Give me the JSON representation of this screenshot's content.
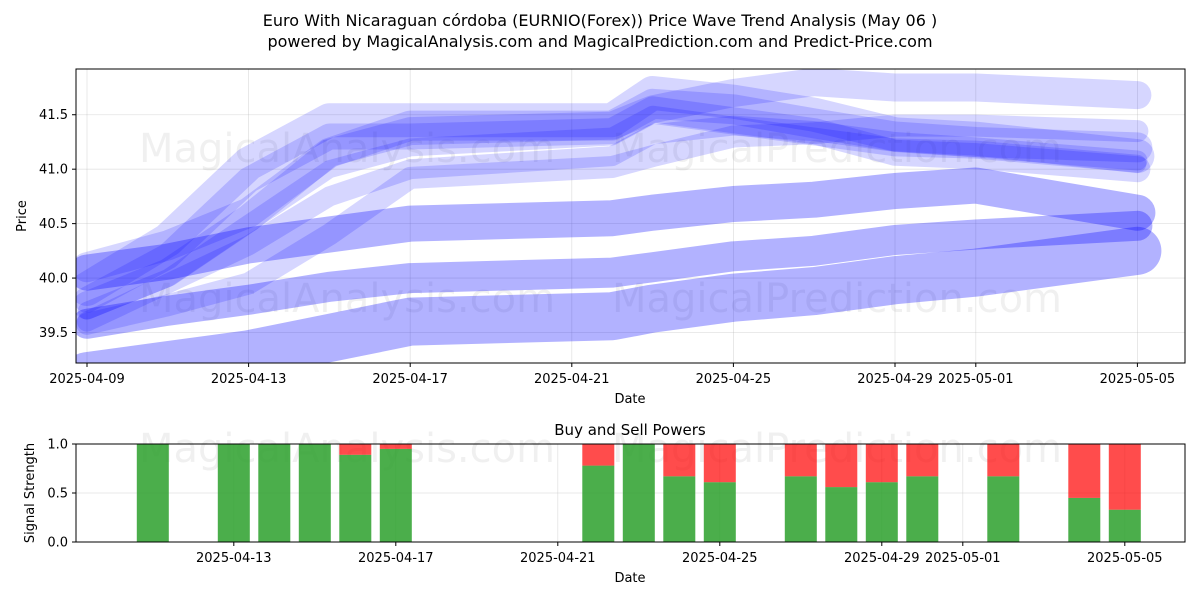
{
  "title_line1": "Euro With Nicaraguan córdoba (EURNIO(Forex)) Price Wave Trend Analysis (May 06 )",
  "title_line2": "powered by MagicalAnalysis.com and MagicalPrediction.com and Predict-Price.com",
  "watermarks": [
    "MagicalAnalysis.com",
    "MagicalPrediction.com"
  ],
  "colors": {
    "wave": "#0000ff",
    "buy": "#2ca02c",
    "sell": "#ff0000",
    "axis": "#000000"
  },
  "chart_data": [
    {
      "type": "line",
      "title": "",
      "xlabel": "Date",
      "ylabel": "Price",
      "x_range": [
        "2025-04-09",
        "2025-05-06"
      ],
      "ylim": [
        39.22,
        41.92
      ],
      "yticks": [
        39.5,
        40.0,
        40.5,
        41.0,
        41.5
      ],
      "xtick_dates": [
        "2025-04-09",
        "2025-04-13",
        "2025-04-17",
        "2025-04-21",
        "2025-04-25",
        "2025-04-29",
        "2025-05-01",
        "2025-05-05"
      ],
      "xtick_labels": [
        "2025-04-09",
        "2025-04-13",
        "2025-04-17",
        "2025-04-21",
        "2025-04-25",
        "2025-04-29",
        "2025-05-01",
        "2025-05-05"
      ],
      "grid": true,
      "series": [
        {
          "points": [
            [
              "2025-04-09",
              39.58
            ],
            [
              "2025-04-11",
              39.75
            ],
            [
              "2025-04-13",
              39.95
            ],
            [
              "2025-04-15",
              40.4
            ],
            [
              "2025-04-17",
              40.92
            ],
            [
              "2025-04-22",
              41.02
            ],
            [
              "2025-04-23",
              41.12
            ],
            [
              "2025-04-25",
              41.3
            ],
            [
              "2025-04-27",
              41.33
            ],
            [
              "2025-04-29",
              41.4
            ],
            [
              "2025-05-01",
              41.4
            ],
            [
              "2025-05-05",
              41.35
            ]
          ]
        },
        {
          "points": [
            [
              "2025-04-09",
              40.1
            ],
            [
              "2025-04-11",
              40.3
            ],
            [
              "2025-04-13",
              40.6
            ],
            [
              "2025-04-15",
              41.15
            ],
            [
              "2025-04-17",
              41.4
            ],
            [
              "2025-04-22",
              41.4
            ],
            [
              "2025-04-23",
              41.6
            ],
            [
              "2025-04-25",
              41.55
            ],
            [
              "2025-04-27",
              41.42
            ],
            [
              "2025-04-29",
              41.3
            ],
            [
              "2025-05-01",
              41.25
            ],
            [
              "2025-05-05",
              41.2
            ]
          ]
        },
        {
          "points": [
            [
              "2025-04-09",
              39.7
            ],
            [
              "2025-04-11",
              40.0
            ],
            [
              "2025-04-13",
              40.5
            ],
            [
              "2025-04-15",
              41.0
            ],
            [
              "2025-04-17",
              41.2
            ],
            [
              "2025-04-22",
              41.3
            ],
            [
              "2025-04-23",
              41.5
            ],
            [
              "2025-04-25",
              41.4
            ],
            [
              "2025-04-27",
              41.3
            ],
            [
              "2025-04-29",
              41.2
            ],
            [
              "2025-05-01",
              41.18
            ],
            [
              "2025-05-05",
              41.05
            ]
          ]
        },
        {
          "points": [
            [
              "2025-04-09",
              39.8
            ],
            [
              "2025-04-11",
              40.2
            ],
            [
              "2025-04-13",
              40.9
            ],
            [
              "2025-04-15",
              41.3
            ],
            [
              "2025-04-17",
              41.3
            ],
            [
              "2025-04-22",
              41.35
            ],
            [
              "2025-04-23",
              41.55
            ],
            [
              "2025-04-25",
              41.45
            ],
            [
              "2025-04-27",
              41.35
            ],
            [
              "2025-04-29",
              41.15
            ],
            [
              "2025-05-01",
              41.12
            ],
            [
              "2025-05-05",
              41.0
            ]
          ]
        },
        {
          "points": [
            [
              "2025-04-09",
              39.9
            ],
            [
              "2025-04-11",
              40.35
            ],
            [
              "2025-04-13",
              41.05
            ],
            [
              "2025-04-15",
              41.45
            ],
            [
              "2025-04-17",
              41.45
            ],
            [
              "2025-04-22",
              41.45
            ],
            [
              "2025-04-23",
              41.7
            ],
            [
              "2025-04-25",
              41.62
            ],
            [
              "2025-04-27",
              41.5
            ],
            [
              "2025-04-29",
              41.32
            ],
            [
              "2025-05-01",
              41.28
            ],
            [
              "2025-05-05",
              41.12
            ]
          ]
        },
        {
          "points": [
            [
              "2025-04-09",
              39.6
            ],
            [
              "2025-04-11",
              39.95
            ],
            [
              "2025-04-13",
              40.3
            ],
            [
              "2025-04-15",
              40.75
            ],
            [
              "2025-04-17",
              41.0
            ],
            [
              "2025-04-22",
              41.12
            ],
            [
              "2025-04-23",
              41.32
            ],
            [
              "2025-04-25",
              41.4
            ],
            [
              "2025-04-27",
              41.35
            ],
            [
              "2025-04-29",
              41.25
            ],
            [
              "2025-05-01",
              41.2
            ],
            [
              "2025-05-05",
              41.08
            ]
          ]
        },
        {
          "points": [
            [
              "2025-04-09",
              39.75
            ],
            [
              "2025-04-11",
              40.05
            ],
            [
              "2025-04-13",
              40.55
            ],
            [
              "2025-04-15",
              41.15
            ],
            [
              "2025-04-17",
              41.35
            ],
            [
              "2025-04-22",
              41.4
            ],
            [
              "2025-04-23",
              41.55
            ],
            [
              "2025-04-25",
              41.7
            ],
            [
              "2025-04-27",
              41.8
            ],
            [
              "2025-04-29",
              41.75
            ],
            [
              "2025-05-01",
              41.75
            ],
            [
              "2025-05-05",
              41.68
            ]
          ]
        },
        {
          "points": [
            [
              "2025-04-09",
              40.05
            ],
            [
              "2025-04-11",
              40.15
            ],
            [
              "2025-04-13",
              40.3
            ],
            [
              "2025-04-15",
              40.4
            ],
            [
              "2025-04-17",
              40.5
            ],
            [
              "2025-04-22",
              40.55
            ],
            [
              "2025-04-23",
              40.6
            ],
            [
              "2025-04-25",
              40.68
            ],
            [
              "2025-04-27",
              40.72
            ],
            [
              "2025-04-29",
              40.8
            ],
            [
              "2025-05-01",
              40.85
            ],
            [
              "2025-05-05",
              40.6
            ]
          ]
        },
        {
          "points": [
            [
              "2025-04-09",
              39.58
            ],
            [
              "2025-04-11",
              39.7
            ],
            [
              "2025-04-13",
              39.8
            ],
            [
              "2025-04-15",
              39.92
            ],
            [
              "2025-04-17",
              40.0
            ],
            [
              "2025-04-22",
              40.05
            ],
            [
              "2025-04-23",
              40.1
            ],
            [
              "2025-04-25",
              40.2
            ],
            [
              "2025-04-27",
              40.25
            ],
            [
              "2025-04-29",
              40.35
            ],
            [
              "2025-05-01",
              40.4
            ],
            [
              "2025-05-05",
              40.48
            ]
          ]
        },
        {
          "points": [
            [
              "2025-04-09",
              39.1
            ],
            [
              "2025-04-11",
              39.2
            ],
            [
              "2025-04-13",
              39.3
            ],
            [
              "2025-04-15",
              39.45
            ],
            [
              "2025-04-17",
              39.6
            ],
            [
              "2025-04-22",
              39.65
            ],
            [
              "2025-04-23",
              39.72
            ],
            [
              "2025-04-25",
              39.82
            ],
            [
              "2025-04-27",
              39.88
            ],
            [
              "2025-04-29",
              39.98
            ],
            [
              "2025-05-01",
              40.05
            ],
            [
              "2025-05-05",
              40.25
            ]
          ]
        }
      ]
    },
    {
      "type": "bar",
      "title": "Buy and Sell Powers",
      "xlabel": "Date",
      "ylabel": "Signal Strength",
      "ylim": [
        0,
        1.0
      ],
      "yticks": [
        0.0,
        0.5,
        1.0
      ],
      "ytick_labels": [
        "0.0",
        "0.5",
        "1.0"
      ],
      "xtick_dates": [
        "2025-04-13",
        "2025-04-17",
        "2025-04-21",
        "2025-04-25",
        "2025-04-29",
        "2025-05-01",
        "2025-05-05"
      ],
      "xtick_labels": [
        "2025-04-13",
        "2025-04-17",
        "2025-04-21",
        "2025-04-25",
        "2025-04-29",
        "2025-05-01",
        "2025-05-05"
      ],
      "bars": [
        {
          "date": "2025-04-11",
          "buy": 1.0,
          "sell": 0.0
        },
        {
          "date": "2025-04-13",
          "buy": 1.0,
          "sell": 0.0
        },
        {
          "date": "2025-04-14",
          "buy": 1.0,
          "sell": 0.0
        },
        {
          "date": "2025-04-15",
          "buy": 1.0,
          "sell": 0.0
        },
        {
          "date": "2025-04-16",
          "buy": 0.89,
          "sell": 0.11
        },
        {
          "date": "2025-04-17",
          "buy": 0.95,
          "sell": 0.05
        },
        {
          "date": "2025-04-22",
          "buy": 0.78,
          "sell": 0.22
        },
        {
          "date": "2025-04-23",
          "buy": 1.0,
          "sell": 0.0
        },
        {
          "date": "2025-04-24",
          "buy": 0.67,
          "sell": 0.33
        },
        {
          "date": "2025-04-25",
          "buy": 0.61,
          "sell": 0.39
        },
        {
          "date": "2025-04-27",
          "buy": 0.67,
          "sell": 0.33
        },
        {
          "date": "2025-04-28",
          "buy": 0.56,
          "sell": 0.44
        },
        {
          "date": "2025-04-29",
          "buy": 0.61,
          "sell": 0.39
        },
        {
          "date": "2025-04-30",
          "buy": 0.67,
          "sell": 0.33
        },
        {
          "date": "2025-05-02",
          "buy": 0.67,
          "sell": 0.33
        },
        {
          "date": "2025-05-04",
          "buy": 0.45,
          "sell": 0.55
        },
        {
          "date": "2025-05-05",
          "buy": 0.33,
          "sell": 0.67
        }
      ]
    }
  ]
}
